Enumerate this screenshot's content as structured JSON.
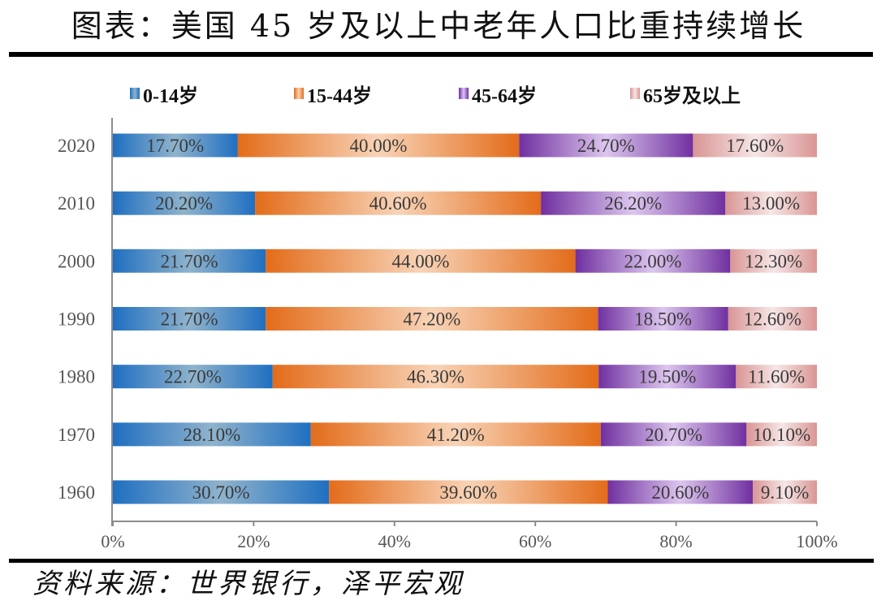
{
  "header": {
    "title": "图表：美国 45 岁及以上中老年人口比重持续增长"
  },
  "footer": {
    "source": "资料来源：世界银行，泽平宏观"
  },
  "chart_data": {
    "type": "bar",
    "orientation": "horizontal",
    "stacked": "percent",
    "title": "图表：美国 45 岁及以上中老年人口比重持续增长",
    "xlabel": "",
    "ylabel": "",
    "xlim": [
      0,
      100
    ],
    "x_ticks": [
      "0%",
      "20%",
      "40%",
      "60%",
      "80%",
      "100%"
    ],
    "categories": [
      "2020",
      "2010",
      "2000",
      "1990",
      "1980",
      "1970",
      "1960"
    ],
    "legend_position": "top",
    "grid": false,
    "series": [
      {
        "name": "0-14岁",
        "color": "#1f6fc1",
        "color_light": "#8fb3cc",
        "values": [
          17.7,
          20.2,
          21.7,
          21.7,
          22.7,
          28.1,
          30.7
        ],
        "labels": [
          "17.70%",
          "20.20%",
          "21.70%",
          "21.70%",
          "22.70%",
          "28.10%",
          "30.70%"
        ]
      },
      {
        "name": "15-44岁",
        "color": "#e36c1a",
        "color_light": "#f8d3b6",
        "values": [
          40.0,
          40.6,
          44.0,
          47.2,
          46.3,
          41.2,
          39.6
        ],
        "labels": [
          "40.00%",
          "40.60%",
          "44.00%",
          "47.20%",
          "46.30%",
          "41.20%",
          "39.60%"
        ]
      },
      {
        "name": "45-64岁",
        "color": "#7030a0",
        "color_light": "#dcc6ee",
        "values": [
          24.7,
          26.2,
          22.0,
          18.5,
          19.5,
          20.7,
          20.6
        ],
        "labels": [
          "24.70%",
          "26.20%",
          "22.00%",
          "18.50%",
          "19.50%",
          "20.70%",
          "20.60%"
        ]
      },
      {
        "name": "65岁及以上",
        "color": "#d99594",
        "color_light": "#f6e6e6",
        "values": [
          17.6,
          13.0,
          12.3,
          12.6,
          11.6,
          10.1,
          9.1
        ],
        "labels": [
          "17.60%",
          "13.00%",
          "12.30%",
          "12.60%",
          "11.60%",
          "10.10%",
          "9.10%"
        ]
      }
    ]
  }
}
